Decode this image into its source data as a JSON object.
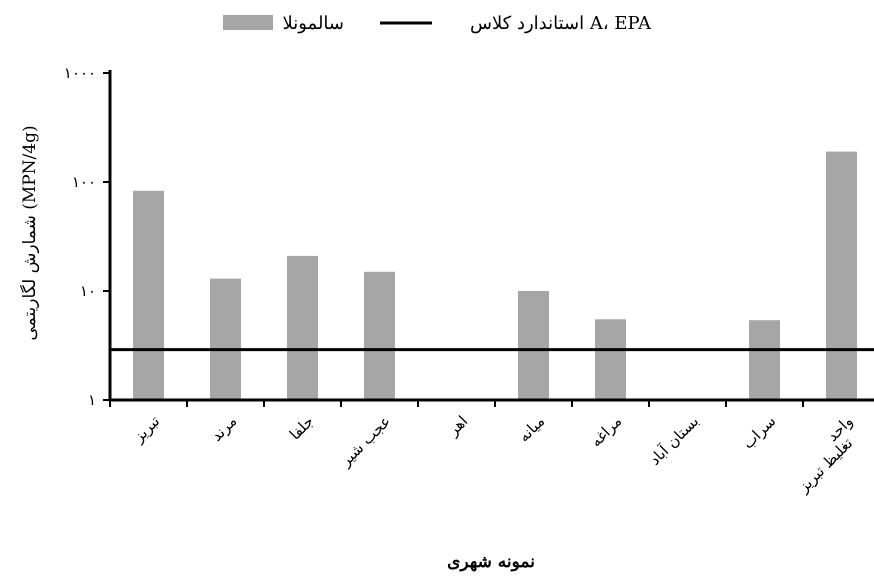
{
  "chart_data": {
    "type": "bar",
    "title": "",
    "xlabel": "نمونه شهری",
    "ylabel": "شمارش لگاریتمی  (MPN/4g)",
    "yscale": "log",
    "ylim": [
      1,
      1000
    ],
    "yticks": [
      1,
      10,
      100,
      1000
    ],
    "ytick_labels": [
      "۱",
      "۱۰",
      "۱۰۰",
      "۱۰۰۰"
    ],
    "categories": [
      "تبریز",
      "مرند",
      "جلفا",
      "عجب شیر",
      "اهر",
      "میانه",
      "مراغه",
      "بستان آباد",
      "سراب",
      "واحد تغلیظ تبریز"
    ],
    "series": [
      {
        "name": "سالمونلا",
        "color": "#a6a6a6",
        "values": [
          83,
          13,
          21,
          15,
          null,
          10,
          5.5,
          null,
          5.4,
          190
        ]
      }
    ],
    "reference_line": {
      "name": "استاندارد کلاس A، EPA",
      "value": 2.9,
      "color": "#000000"
    },
    "grid": false,
    "legend": "top"
  }
}
